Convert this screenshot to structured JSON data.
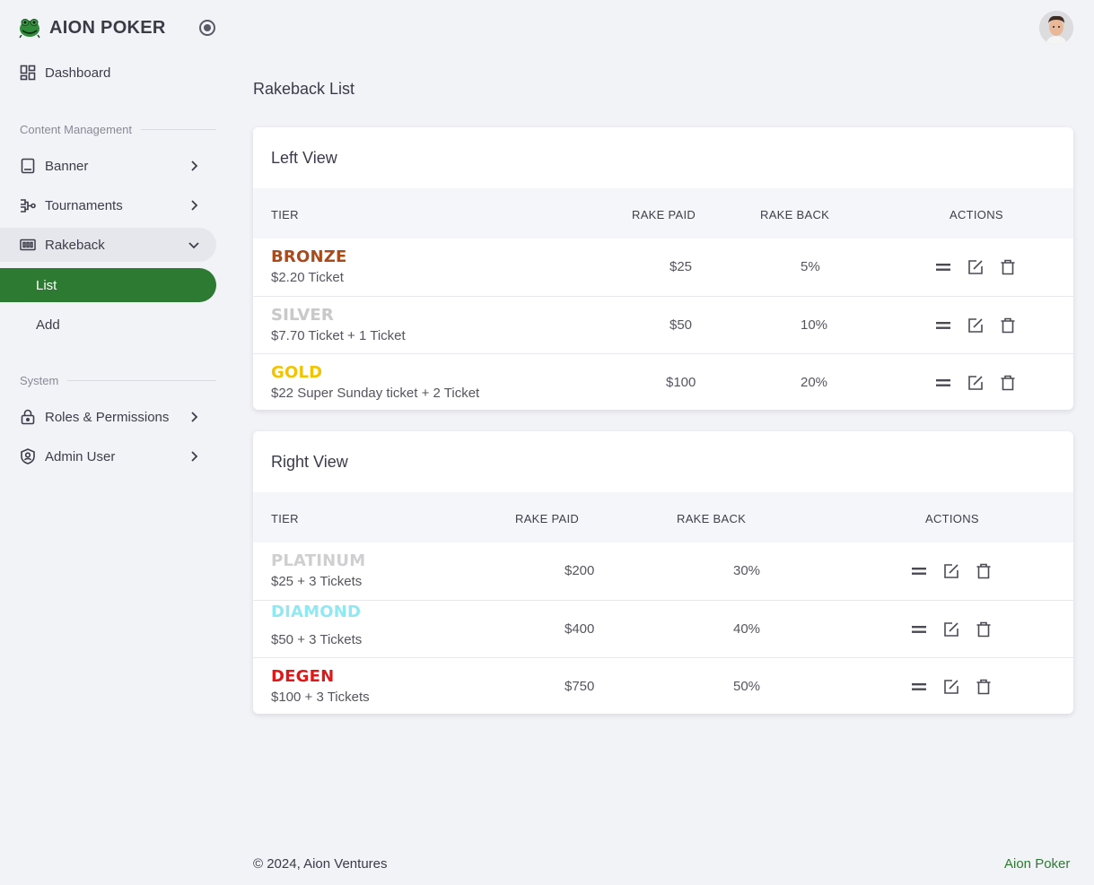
{
  "brand": {
    "name": "AION POKER"
  },
  "sidebar": {
    "dashboard": "Dashboard",
    "section_content": "Content Management",
    "banner": "Banner",
    "tournaments": "Tournaments",
    "rakeback": "Rakeback",
    "rakeback_list": "List",
    "rakeback_add": "Add",
    "section_system": "System",
    "roles": "Roles & Permissions",
    "admin_user": "Admin User"
  },
  "page": {
    "title": "Rakeback List"
  },
  "left_view": {
    "title": "Left View",
    "columns": [
      "TIER",
      "RAKE PAID",
      "RAKE BACK",
      "ACTIONS"
    ],
    "rows": [
      {
        "tier": "BRONZE",
        "desc": "$2.20 Ticket",
        "rake_paid": "$25",
        "rake_back": "5%"
      },
      {
        "tier": "SILVER",
        "desc": "$7.70 Ticket + 1 Ticket",
        "rake_paid": "$50",
        "rake_back": "10%"
      },
      {
        "tier": "GOLD",
        "desc": "$22 Super Sunday ticket + 2 Ticket",
        "rake_paid": "$100",
        "rake_back": "20%"
      }
    ]
  },
  "right_view": {
    "title": "Right View",
    "columns": [
      "TIER",
      "RAKE PAID",
      "RAKE BACK",
      "ACTIONS"
    ],
    "rows": [
      {
        "tier": "PLATINUM",
        "desc": "$25 + 3 Tickets",
        "rake_paid": "$200",
        "rake_back": "30%"
      },
      {
        "tier": "DIAMOND",
        "desc": "$50 + 3 Tickets",
        "rake_paid": "$400",
        "rake_back": "40%"
      },
      {
        "tier": "DEGEN",
        "desc": "$100 + 3 Tickets",
        "rake_paid": "$750",
        "rake_back": "50%"
      }
    ]
  },
  "footer": {
    "copyright": "© 2024, Aion Ventures",
    "link": "Aion Poker"
  },
  "colors": {
    "accent": "#2d7a33",
    "bronze": "#a84c1e",
    "silver": "#c9c9c9",
    "gold": "#f2c400",
    "platinum": "#cfcfd2",
    "diamond": "#8fe8f2",
    "degen": "#e01818"
  },
  "icons": [
    "frog-logo-icon",
    "radio-collapse-icon",
    "dashboard-icon",
    "banner-icon",
    "tournament-icon",
    "rakeback-icon",
    "lock-icon",
    "shield-user-icon",
    "chevron-right-icon",
    "chevron-down-icon",
    "drag-handle-icon",
    "edit-icon",
    "trash-icon"
  ]
}
